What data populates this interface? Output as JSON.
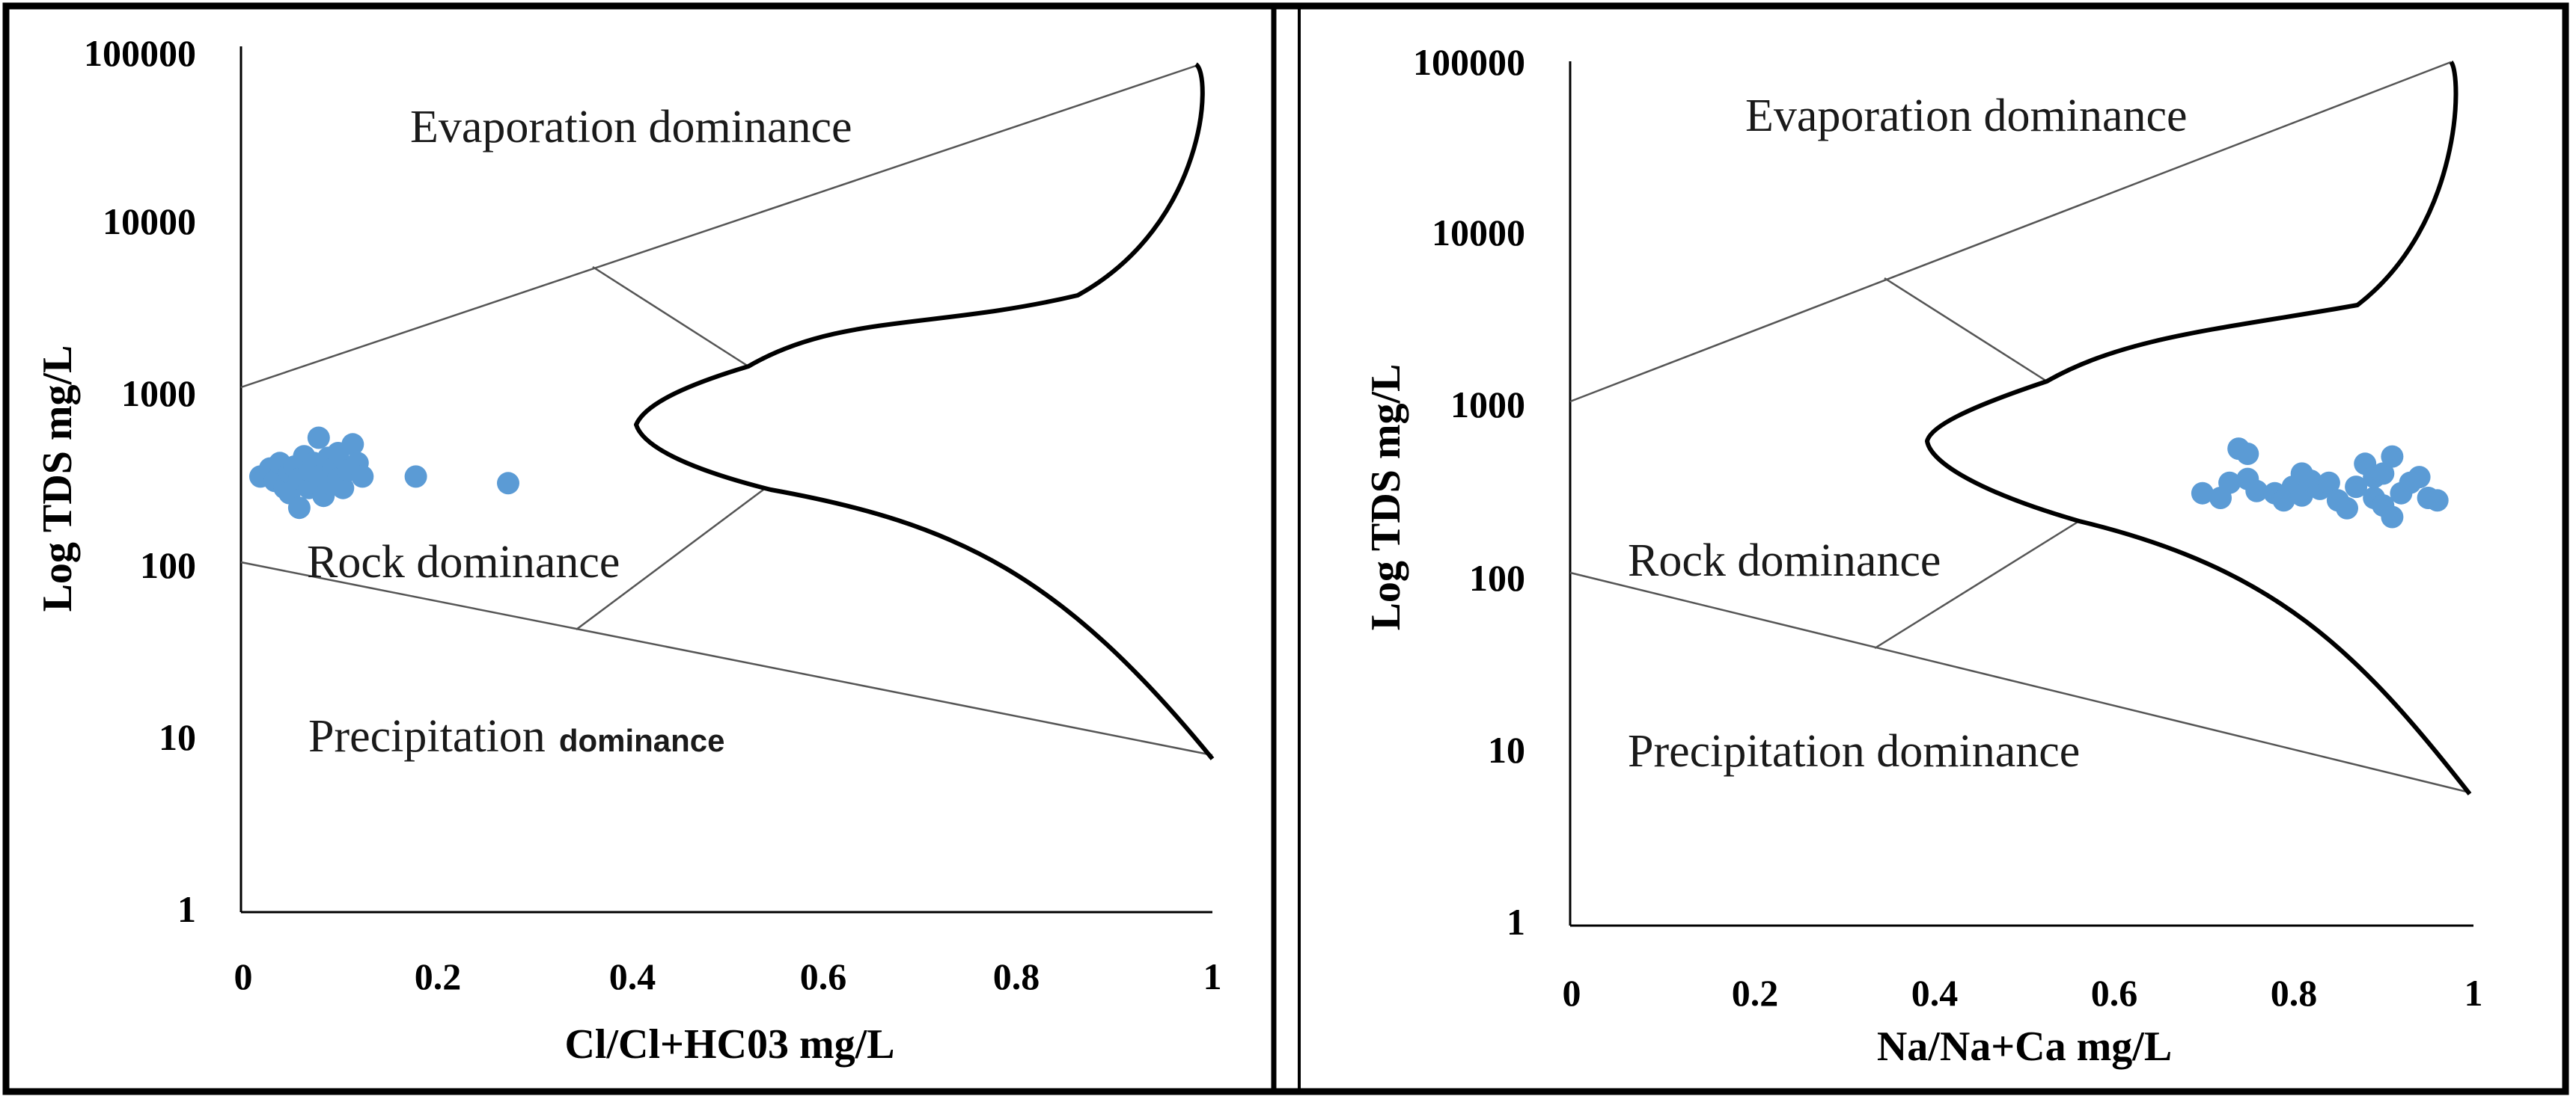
{
  "chart_data": [
    {
      "type": "scatter",
      "xlabel": "Cl/Cl+HC03  mg/L",
      "ylabel": "Log TDS mg/L",
      "xlim": [
        0,
        1
      ],
      "ylim": [
        1,
        100000
      ],
      "yscale": "log",
      "x_ticks": [
        "0",
        "0.2",
        "0.4",
        "0.6",
        "0.8",
        "1"
      ],
      "y_ticks": [
        "1",
        "10",
        "100",
        "1000",
        "10000",
        "100000"
      ],
      "grid": false,
      "point_color": "#5b9bd5",
      "regions": {
        "evaporation": "Evaporation dominance",
        "rock": "Rock dominance",
        "precipitation_main": "Precipitation",
        "precipitation_suffix": "dominance"
      },
      "points": [
        [
          0.02,
          350
        ],
        [
          0.03,
          390
        ],
        [
          0.035,
          330
        ],
        [
          0.04,
          420
        ],
        [
          0.045,
          300
        ],
        [
          0.05,
          370
        ],
        [
          0.05,
          280
        ],
        [
          0.055,
          400
        ],
        [
          0.06,
          340
        ],
        [
          0.06,
          230
        ],
        [
          0.065,
          460
        ],
        [
          0.07,
          300
        ],
        [
          0.07,
          380
        ],
        [
          0.075,
          420
        ],
        [
          0.08,
          350
        ],
        [
          0.08,
          590
        ],
        [
          0.085,
          270
        ],
        [
          0.09,
          450
        ],
        [
          0.09,
          320
        ],
        [
          0.095,
          390
        ],
        [
          0.1,
          340
        ],
        [
          0.1,
          480
        ],
        [
          0.105,
          300
        ],
        [
          0.11,
          380
        ],
        [
          0.115,
          540
        ],
        [
          0.12,
          420
        ],
        [
          0.125,
          350
        ],
        [
          0.18,
          350
        ],
        [
          0.275,
          320
        ]
      ]
    },
    {
      "type": "scatter",
      "xlabel": "Na/Na+Ca  mg/L",
      "ylabel": "Log TDS mg/L",
      "xlim": [
        0,
        1
      ],
      "ylim": [
        1,
        100000
      ],
      "yscale": "log",
      "x_ticks": [
        "0",
        "0.2",
        "0.4",
        "0.6",
        "0.8",
        "1"
      ],
      "y_ticks": [
        "1",
        "10",
        "100",
        "1000",
        "10000",
        "100000"
      ],
      "grid": false,
      "point_color": "#5b9bd5",
      "regions": {
        "evaporation": "Evaporation dominance",
        "rock": "Rock dominance",
        "precipitation_main": "Precipitation dominance",
        "precipitation_suffix": ""
      },
      "points": [
        [
          0.7,
          330
        ],
        [
          0.72,
          310
        ],
        [
          0.73,
          380
        ],
        [
          0.74,
          600
        ],
        [
          0.75,
          560
        ],
        [
          0.75,
          400
        ],
        [
          0.76,
          340
        ],
        [
          0.78,
          330
        ],
        [
          0.79,
          300
        ],
        [
          0.8,
          360
        ],
        [
          0.81,
          430
        ],
        [
          0.81,
          320
        ],
        [
          0.82,
          390
        ],
        [
          0.83,
          350
        ],
        [
          0.84,
          380
        ],
        [
          0.85,
          300
        ],
        [
          0.86,
          270
        ],
        [
          0.87,
          360
        ],
        [
          0.88,
          490
        ],
        [
          0.89,
          310
        ],
        [
          0.89,
          410
        ],
        [
          0.9,
          280
        ],
        [
          0.9,
          430
        ],
        [
          0.91,
          540
        ],
        [
          0.91,
          240
        ],
        [
          0.92,
          330
        ],
        [
          0.93,
          380
        ],
        [
          0.94,
          410
        ],
        [
          0.95,
          310
        ],
        [
          0.96,
          300
        ]
      ]
    }
  ]
}
